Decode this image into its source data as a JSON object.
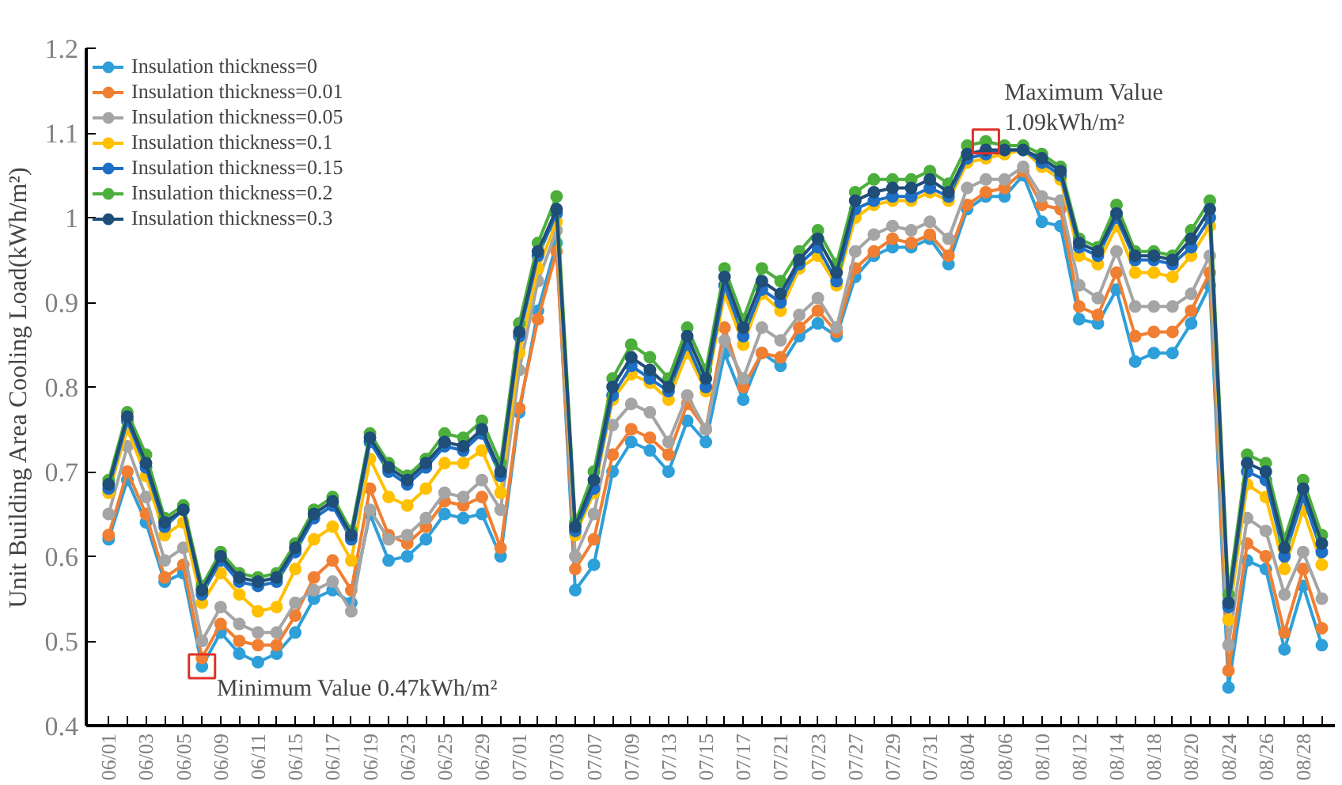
{
  "chart_data": {
    "type": "line",
    "ylabel": "Unit Building Area Cooling Load(kWh/m²)",
    "marker": "circle",
    "line_style": "solid",
    "legend": "top left",
    "categories": [
      "06/01",
      null,
      "06/03",
      null,
      "06/05",
      null,
      "06/09",
      null,
      "06/11",
      null,
      "06/15",
      null,
      "06/17",
      null,
      "06/19",
      null,
      "06/23",
      null,
      "06/25",
      null,
      "06/29",
      null,
      "07/01",
      null,
      "07/03",
      null,
      "07/07",
      null,
      "07/09",
      null,
      "07/13",
      null,
      "07/15",
      null,
      "07/17",
      null,
      "07/21",
      null,
      "07/23",
      null,
      "07/27",
      null,
      "07/29",
      null,
      "07/31",
      null,
      "08/04",
      null,
      "08/06",
      null,
      "08/10",
      null,
      "08/12",
      null,
      "08/14",
      null,
      "08/18",
      null,
      "08/20",
      null,
      "08/24",
      null,
      "08/26",
      null,
      "08/28",
      null
    ],
    "ylim": [
      0.4,
      1.2
    ],
    "yticks": [
      0.4,
      0.5,
      0.6,
      0.7,
      0.8,
      0.9,
      1,
      1.1,
      1.2
    ],
    "series": [
      {
        "name": "Insulation thickness=0",
        "color": "#2e9fd9",
        "values": [
          0.62,
          0.69,
          0.64,
          0.57,
          0.58,
          0.47,
          0.51,
          0.485,
          0.475,
          0.485,
          0.51,
          0.55,
          0.56,
          0.545,
          0.65,
          0.595,
          0.6,
          0.62,
          0.65,
          0.645,
          0.65,
          0.6,
          0.77,
          0.89,
          0.97,
          0.56,
          0.59,
          0.7,
          0.735,
          0.725,
          0.7,
          0.76,
          0.735,
          0.84,
          0.785,
          0.84,
          0.825,
          0.86,
          0.875,
          0.86,
          0.93,
          0.955,
          0.965,
          0.965,
          0.975,
          0.945,
          1.01,
          1.025,
          1.025,
          1.05,
          0.995,
          0.99,
          0.88,
          0.875,
          0.915,
          0.83,
          0.84,
          0.84,
          0.875,
          0.92,
          0.445,
          0.595,
          0.585,
          0.49,
          0.565,
          0.495
        ]
      },
      {
        "name": "Insulation thickness=0.01",
        "color": "#f07f33",
        "values": [
          0.625,
          0.7,
          0.65,
          0.575,
          0.59,
          0.48,
          0.52,
          0.5,
          0.495,
          0.495,
          0.53,
          0.575,
          0.595,
          0.56,
          0.68,
          0.625,
          0.615,
          0.635,
          0.665,
          0.66,
          0.67,
          0.61,
          0.775,
          0.88,
          0.96,
          0.585,
          0.62,
          0.72,
          0.75,
          0.74,
          0.72,
          0.78,
          0.75,
          0.87,
          0.8,
          0.84,
          0.835,
          0.87,
          0.89,
          0.865,
          0.94,
          0.96,
          0.975,
          0.97,
          0.98,
          0.955,
          1.015,
          1.03,
          1.035,
          1.055,
          1.015,
          1.01,
          0.895,
          0.885,
          0.935,
          0.86,
          0.865,
          0.865,
          0.89,
          0.935,
          0.465,
          0.615,
          0.6,
          0.51,
          0.585,
          0.515
        ]
      },
      {
        "name": "Insulation thickness=0.05",
        "color": "#a5a5a5",
        "values": [
          0.65,
          0.73,
          0.67,
          0.595,
          0.61,
          0.5,
          0.54,
          0.52,
          0.51,
          0.51,
          0.545,
          0.56,
          0.57,
          0.535,
          0.655,
          0.62,
          0.625,
          0.645,
          0.675,
          0.67,
          0.69,
          0.655,
          0.82,
          0.925,
          0.985,
          0.6,
          0.65,
          0.755,
          0.78,
          0.77,
          0.735,
          0.79,
          0.75,
          0.855,
          0.81,
          0.87,
          0.855,
          0.885,
          0.905,
          0.87,
          0.96,
          0.98,
          0.99,
          0.985,
          0.995,
          0.975,
          1.035,
          1.045,
          1.045,
          1.06,
          1.025,
          1.02,
          0.92,
          0.905,
          0.96,
          0.895,
          0.895,
          0.895,
          0.91,
          0.955,
          0.495,
          0.645,
          0.63,
          0.555,
          0.605,
          0.55
        ]
      },
      {
        "name": "Insulation thickness=0.1",
        "color": "#ffc000",
        "values": [
          0.675,
          0.75,
          0.695,
          0.625,
          0.64,
          0.545,
          0.58,
          0.555,
          0.535,
          0.54,
          0.585,
          0.62,
          0.635,
          0.595,
          0.715,
          0.67,
          0.66,
          0.68,
          0.71,
          0.71,
          0.725,
          0.675,
          0.84,
          0.94,
          0.995,
          0.625,
          0.675,
          0.785,
          0.815,
          0.805,
          0.785,
          0.84,
          0.795,
          0.91,
          0.85,
          0.91,
          0.89,
          0.94,
          0.955,
          0.92,
          1.0,
          1.015,
          1.02,
          1.02,
          1.03,
          1.02,
          1.065,
          1.07,
          1.075,
          1.08,
          1.06,
          1.045,
          0.955,
          0.945,
          0.99,
          0.935,
          0.935,
          0.93,
          0.955,
          0.99,
          0.525,
          0.685,
          0.67,
          0.585,
          0.655,
          0.59
        ]
      },
      {
        "name": "Insulation thickness=0.15",
        "color": "#1f6fc5",
        "values": [
          0.68,
          0.76,
          0.705,
          0.635,
          0.655,
          0.555,
          0.595,
          0.57,
          0.565,
          0.57,
          0.605,
          0.645,
          0.66,
          0.62,
          0.735,
          0.7,
          0.685,
          0.705,
          0.73,
          0.725,
          0.745,
          0.695,
          0.86,
          0.955,
          1.005,
          0.63,
          0.68,
          0.79,
          0.825,
          0.81,
          0.795,
          0.85,
          0.8,
          0.92,
          0.86,
          0.915,
          0.9,
          0.945,
          0.965,
          0.925,
          1.01,
          1.02,
          1.025,
          1.025,
          1.035,
          1.025,
          1.07,
          1.075,
          1.08,
          1.08,
          1.065,
          1.05,
          0.965,
          0.955,
          1.0,
          0.95,
          0.95,
          0.945,
          0.965,
          1.0,
          0.54,
          0.7,
          0.69,
          0.6,
          0.67,
          0.605
        ]
      },
      {
        "name": "Insulation thickness=0.2",
        "color": "#4caf3c",
        "values": [
          0.69,
          0.77,
          0.72,
          0.645,
          0.66,
          0.565,
          0.605,
          0.58,
          0.575,
          0.58,
          0.615,
          0.655,
          0.67,
          0.63,
          0.745,
          0.71,
          0.695,
          0.715,
          0.745,
          0.74,
          0.76,
          0.71,
          0.875,
          0.97,
          1.025,
          0.64,
          0.7,
          0.81,
          0.85,
          0.835,
          0.81,
          0.87,
          0.82,
          0.94,
          0.88,
          0.94,
          0.925,
          0.96,
          0.985,
          0.945,
          1.03,
          1.045,
          1.045,
          1.045,
          1.055,
          1.04,
          1.085,
          1.09,
          1.085,
          1.085,
          1.075,
          1.06,
          0.975,
          0.965,
          1.015,
          0.96,
          0.96,
          0.955,
          0.985,
          1.02,
          0.555,
          0.72,
          0.71,
          0.62,
          0.69,
          0.625
        ]
      },
      {
        "name": "Insulation thickness=0.3",
        "color": "#1f4e79",
        "values": [
          0.685,
          0.765,
          0.71,
          0.64,
          0.655,
          0.56,
          0.6,
          0.575,
          0.57,
          0.575,
          0.61,
          0.65,
          0.665,
          0.625,
          0.74,
          0.705,
          0.69,
          0.71,
          0.735,
          0.73,
          0.75,
          0.7,
          0.865,
          0.96,
          1.01,
          0.635,
          0.69,
          0.8,
          0.835,
          0.82,
          0.8,
          0.86,
          0.81,
          0.93,
          0.87,
          0.925,
          0.91,
          0.95,
          0.975,
          0.935,
          1.02,
          1.03,
          1.035,
          1.035,
          1.045,
          1.03,
          1.075,
          1.08,
          1.08,
          1.08,
          1.07,
          1.055,
          0.97,
          0.96,
          1.005,
          0.955,
          0.955,
          0.95,
          0.975,
          1.01,
          0.545,
          0.71,
          0.7,
          0.61,
          0.68,
          0.615
        ]
      }
    ],
    "annotations": [
      "Minimum Value 0.47kWh/m²",
      "Maximum Value\n1.09kWh/m²"
    ]
  }
}
